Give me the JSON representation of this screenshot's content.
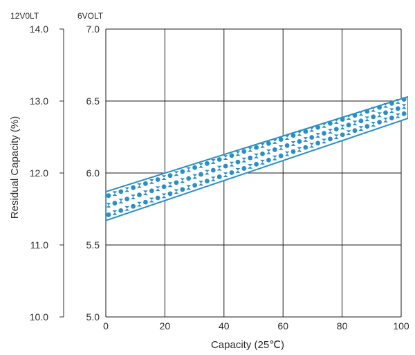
{
  "chart_data": {
    "type": "area",
    "unit_left": "12V0LT",
    "unit_right": "6VOLT",
    "xlabel": "Capacity (25℃)",
    "ylabel": "Residual Capacity (%)",
    "x_ticks": [
      "0",
      "20",
      "40",
      "60",
      "80",
      "100"
    ],
    "y_ticks_12v": [
      "14.0",
      "13.0",
      "12.0",
      "11.0",
      "10.0"
    ],
    "y_ticks_6v": [
      "7.0",
      "6.5",
      "6.0",
      "5.5",
      "5.0"
    ],
    "xlim": [
      0,
      100
    ],
    "ylim_6v": [
      5.0,
      7.0
    ],
    "ylim_12v": [
      10.0,
      14.0
    ],
    "grid": true,
    "band": {
      "x": [
        0,
        100
      ],
      "upper_6v": [
        5.87,
        6.53
      ],
      "lower_6v": [
        5.67,
        6.38
      ]
    },
    "colors": {
      "band": "#2a8fc6",
      "grid": "#1a1a1a",
      "axis": "#2b2b2b"
    }
  }
}
